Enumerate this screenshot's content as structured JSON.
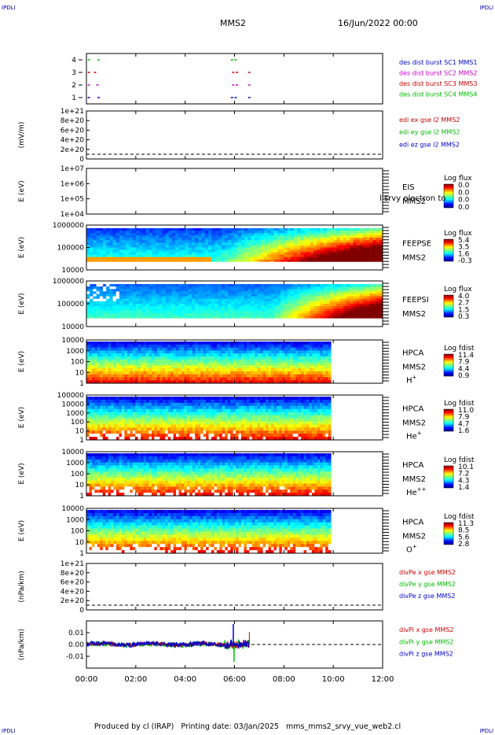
{
  "corner_label": "IPDLI",
  "header": {
    "spacecraft": "MMS2",
    "date": "16/Jun/2022 00:00"
  },
  "footer": {
    "produced_by": "Produced by cl (IRAP)",
    "printing_date": "Printing date: 03/Jan/2025",
    "filename": "mms_mms2_srvy_vue_web2.cl"
  },
  "colors": {
    "red": "#cc0000",
    "magenta": "#cc00cc",
    "green": "#00bb00",
    "blue": "#0000cc"
  },
  "chart_data": {
    "type": "heatmap",
    "x_range_hours": [
      0,
      12
    ],
    "x_tick_labels": [
      "00:00",
      "02:00",
      "04:00",
      "06:00",
      "08:00",
      "10:00",
      "12:00"
    ],
    "panels": [
      {
        "id": "burst",
        "kind": "bursts",
        "y_ticks": [
          "4",
          "3",
          "2",
          "1"
        ],
        "legend": [
          {
            "text": "des dist burst SC1 MMS1",
            "color": "#0000cc"
          },
          {
            "text": "des dist burst SC2 MMS2",
            "color": "#cc00cc"
          },
          {
            "text": "des dist burst SC3 MMS3",
            "color": "#cc0000"
          },
          {
            "text": "des dist burst SC4 MMS4",
            "color": "#00bb00"
          }
        ],
        "bursts": [
          {
            "sc": 4,
            "hours": [
              0.05,
              0.45,
              5.85,
              6.0
            ]
          },
          {
            "sc": 3,
            "hours": [
              0.05,
              0.3,
              5.9,
              6.05,
              6.55
            ]
          },
          {
            "sc": 2,
            "hours": [
              0.05,
              0.4,
              5.9,
              6.05,
              6.55
            ]
          },
          {
            "sc": 1,
            "hours": [
              0.05,
              0.45,
              5.85,
              6.0,
              6.55
            ]
          }
        ]
      },
      {
        "id": "edi",
        "kind": "empty-line",
        "ylabel": "(mV/m)",
        "y_ticks": [
          "1e+21",
          "8e+20",
          "6e+20",
          "4e+20",
          "2e+20",
          "0"
        ],
        "legend": [
          {
            "text": "edi ex gse l2 MMS2",
            "color": "#cc0000"
          },
          {
            "text": "edi ey gse l2 MMS2",
            "color": "#00bb00"
          },
          {
            "text": "edi ez gse l2 MMS2",
            "color": "#0000cc"
          }
        ]
      },
      {
        "id": "eis",
        "kind": "empty-spec",
        "ylabel": "E (eV)",
        "y_ticks": [
          "1e+07",
          "1e+06",
          "1e+05",
          "1e+04"
        ],
        "right_labels": [
          "EIS",
          "MMS2"
        ],
        "overlap_text": "l srvy electron to",
        "cbar_title": "Log flux",
        "cbar_ticks": [
          "0.0",
          "0.0",
          "0.0",
          "0.0"
        ]
      },
      {
        "id": "feepse",
        "kind": "spec",
        "ylabel": "E (eV)",
        "y_ticks": [
          "1000000",
          "100000",
          "10000"
        ],
        "right_labels": [
          "FEEPSE",
          "MMS2"
        ],
        "cbar_title": "Log flux",
        "cbar_ticks": [
          "5.4",
          "3.5",
          "1.6",
          "-0.3"
        ]
      },
      {
        "id": "feepsi",
        "kind": "spec",
        "ylabel": "E (eV)",
        "y_ticks": [
          "1000000",
          "100000",
          "10000"
        ],
        "right_labels": [
          "FEEPSI",
          "MMS2"
        ],
        "cbar_title": "Log flux",
        "cbar_ticks": [
          "4.0",
          "2.7",
          "1.5",
          "0.3"
        ]
      },
      {
        "id": "hpca-h",
        "kind": "spec",
        "ylabel": "E (eV)",
        "y_ticks": [
          "10000",
          "1000",
          "100",
          "10",
          "1"
        ],
        "right_labels": [
          "HPCA",
          "MMS2"
        ],
        "species": "H",
        "species_sup": "+",
        "cbar_title": "Log fdist",
        "cbar_ticks": [
          "11.4",
          "7.9",
          "4.4",
          "0.9"
        ]
      },
      {
        "id": "hpca-he",
        "kind": "spec",
        "ylabel": "E (eV)",
        "y_ticks": [
          "100000",
          "10000",
          "1000",
          "100",
          "10",
          "1"
        ],
        "right_labels": [
          "HPCA",
          "MMS2"
        ],
        "species": "He",
        "species_sup": "+",
        "cbar_title": "Log fdist",
        "cbar_ticks": [
          "11.0",
          "7.9",
          "4.7",
          "1.6"
        ]
      },
      {
        "id": "hpca-hepp",
        "kind": "spec",
        "ylabel": "E (eV)",
        "y_ticks": [
          "10000",
          "1000",
          "100",
          "10",
          "1"
        ],
        "right_labels": [
          "HPCA",
          "MMS2"
        ],
        "species": "He",
        "species_sup": "++",
        "cbar_title": "Log fdist",
        "cbar_ticks": [
          "10.1",
          "7.2",
          "4.3",
          "1.4"
        ]
      },
      {
        "id": "hpca-o",
        "kind": "spec",
        "ylabel": "E (eV)",
        "y_ticks": [
          "10000",
          "1000",
          "100",
          "10",
          "1"
        ],
        "right_labels": [
          "HPCA",
          "MMS2"
        ],
        "species": "O",
        "species_sup": "+",
        "cbar_title": "Log fdist",
        "cbar_ticks": [
          "11.3",
          "8.5",
          "5.6",
          "2.8"
        ]
      },
      {
        "id": "divpe",
        "kind": "empty-line",
        "ylabel": "(nPa/km)",
        "y_ticks": [
          "1e+21",
          "8e+20",
          "6e+20",
          "4e+20",
          "2e+20",
          "0"
        ],
        "legend": [
          {
            "text": "divPe x gse MMS2",
            "color": "#cc0000"
          },
          {
            "text": "divPe y gse MMS2",
            "color": "#00bb00"
          },
          {
            "text": "divPe z gse MMS2",
            "color": "#0000cc"
          }
        ]
      },
      {
        "id": "divpi",
        "kind": "line",
        "ylabel": "(nPa/km)",
        "y_ticks": [
          "0.01",
          "0.00",
          "-0.01"
        ],
        "y_range": [
          -0.015,
          0.015
        ],
        "legend": [
          {
            "text": "divPi x gse MMS2",
            "color": "#cc0000"
          },
          {
            "text": "divPi y gse MMS2",
            "color": "#00bb00"
          },
          {
            "text": "divPi z gse MMS2",
            "color": "#0000cc"
          }
        ]
      }
    ]
  }
}
